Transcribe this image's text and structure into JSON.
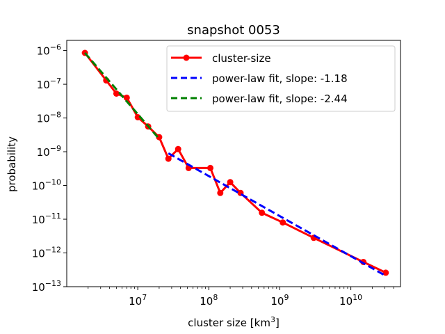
{
  "chart_data": {
    "type": "line",
    "title": "snapshot 0053",
    "xlabel_base": "cluster size [km",
    "xlabel_sup": "3",
    "xlabel_tail": "]",
    "ylabel": "probability",
    "x_scale": "log",
    "y_scale": "log",
    "xlim": [
      1000000,
      50000000000
    ],
    "ylim": [
      1e-13,
      2e-06
    ],
    "grid": false,
    "legend_position": "top-right",
    "x_ticks": [
      {
        "value": 10000000,
        "base": "10",
        "exp": "7"
      },
      {
        "value": 100000000,
        "base": "10",
        "exp": "8"
      },
      {
        "value": 1000000000,
        "base": "10",
        "exp": "9"
      },
      {
        "value": 10000000000,
        "base": "10",
        "exp": "10"
      }
    ],
    "y_ticks": [
      {
        "value": 1e-06,
        "base": "10",
        "exp": "−6"
      },
      {
        "value": 1e-07,
        "base": "10",
        "exp": "−7"
      },
      {
        "value": 1e-08,
        "base": "10",
        "exp": "−8"
      },
      {
        "value": 1e-09,
        "base": "10",
        "exp": "−9"
      },
      {
        "value": 1e-10,
        "base": "10",
        "exp": "−10"
      },
      {
        "value": 1e-11,
        "base": "10",
        "exp": "−11"
      },
      {
        "value": 1e-12,
        "base": "10",
        "exp": "−12"
      },
      {
        "value": 1e-13,
        "base": "10",
        "exp": "−13"
      }
    ],
    "series": [
      {
        "name": "cluster-size",
        "color": "#ff0000",
        "style": "solid-with-markers",
        "x": [
          1800000,
          3600000,
          5000000,
          7000000,
          10000000,
          14000000,
          20000000,
          27000000,
          37000000,
          52000000,
          105000000,
          145000000,
          200000000,
          280000000,
          560000000,
          1100000000,
          3000000000,
          15000000000,
          31000000000
        ],
        "y": [
          8.5e-07,
          1.3e-07,
          5.3e-08,
          4e-08,
          1.05e-08,
          5.6e-09,
          2.7e-09,
          6.2e-10,
          1.2e-09,
          3.3e-10,
          3.3e-10,
          6e-11,
          1.25e-10,
          6e-11,
          1.55e-11,
          8e-12,
          2.8e-12,
          5.4e-13,
          2.6e-13
        ]
      },
      {
        "name": "power-law fit, slope: -1.18",
        "color": "#0000ff",
        "style": "dashed",
        "x": [
          27000000,
          31000000000
        ],
        "y": [
          9e-10,
          2.1e-13
        ]
      },
      {
        "name": "power-law fit, slope: -2.44",
        "color": "#008000",
        "style": "dashed",
        "x": [
          1800000,
          20000000
        ],
        "y": [
          8.5e-07,
          2.4e-09
        ]
      }
    ]
  }
}
